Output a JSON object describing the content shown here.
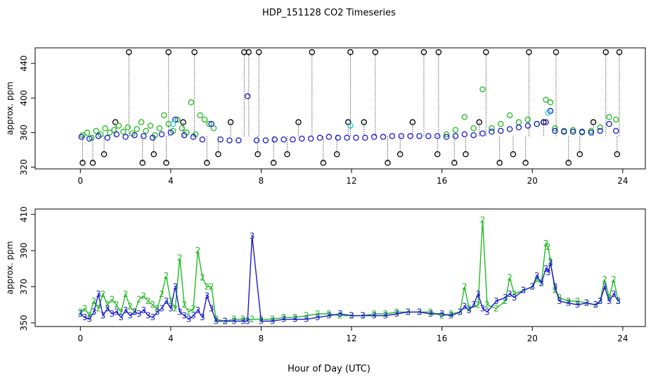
{
  "title": "HDP_151128  CO2 Timeseries",
  "xlabel": "Hour of Day (UTC)",
  "colors": {
    "black": "#000000",
    "green": "#22bb22",
    "blue": "#1a1acc",
    "cyan": "#22cccc"
  },
  "chart_data": [
    {
      "type": "scatter",
      "panel": "top",
      "ylabel": "approx. ppm",
      "xlim": [
        -2,
        25
      ],
      "ylim": [
        318,
        458
      ],
      "xticks": [
        0,
        4,
        8,
        12,
        16,
        20,
        24
      ],
      "yticks": [
        320,
        360,
        400,
        440
      ],
      "grid": false,
      "legend": "none",
      "series": [
        {
          "color": "black",
          "marker": "circle",
          "style": "dotted-stems-to-points",
          "x": [
            0.1,
            0.55,
            1.05,
            1.55,
            2.15,
            2.75,
            3.25,
            3.8,
            3.9,
            4.55,
            5.05,
            5.6,
            6.1,
            6.65,
            7.25,
            7.45,
            7.85,
            7.9,
            8.55,
            9.15,
            9.65,
            10.25,
            10.75,
            11.35,
            11.85,
            11.95,
            12.55,
            13.05,
            13.6,
            14.15,
            14.7,
            15.2,
            15.8,
            15.85,
            16.55,
            17.05,
            17.65,
            17.95,
            18.55,
            19.15,
            19.7,
            19.85,
            20.5,
            21.05,
            21.6,
            22.1,
            22.7,
            23.25,
            23.75,
            23.85
          ],
          "y": [
            325,
            325,
            335,
            372,
            453,
            325,
            335,
            325,
            453,
            372,
            453,
            325,
            335,
            372,
            453,
            453,
            335,
            453,
            325,
            335,
            372,
            453,
            325,
            335,
            372,
            453,
            372,
            453,
            325,
            335,
            372,
            453,
            335,
            453,
            325,
            335,
            372,
            453,
            325,
            335,
            325,
            453,
            372,
            453,
            325,
            335,
            372,
            453,
            335,
            453
          ]
        },
        {
          "color": "green",
          "marker": "circle",
          "x": [
            0.1,
            0.3,
            0.5,
            0.7,
            0.9,
            1.1,
            1.3,
            1.5,
            1.7,
            1.9,
            2.1,
            2.3,
            2.5,
            2.7,
            2.9,
            3.1,
            3.3,
            3.5,
            3.7,
            3.9,
            4.1,
            4.3,
            4.5,
            4.7,
            4.9,
            5.1,
            5.3,
            5.5,
            5.7,
            5.9,
            16.2,
            16.6,
            17.0,
            17.4,
            17.8,
            18.2,
            18.6,
            19.0,
            19.4,
            19.8,
            20.2,
            20.6,
            20.8,
            21.0,
            21.4,
            21.8,
            22.2,
            22.6,
            23.0,
            23.4,
            23.7
          ],
          "y": [
            357,
            360,
            354,
            362,
            358,
            365,
            360,
            363,
            368,
            361,
            366,
            359,
            364,
            372,
            362,
            368,
            357,
            365,
            380,
            370,
            362,
            375,
            365,
            360,
            395,
            358,
            380,
            375,
            370,
            365,
            358,
            363,
            378,
            365,
            410,
            365,
            370,
            380,
            372,
            375,
            370,
            398,
            395,
            365,
            362,
            363,
            360,
            362,
            366,
            378,
            375
          ]
        },
        {
          "color": "blue",
          "marker": "circle",
          "x": [
            0.05,
            0.4,
            0.8,
            1.2,
            1.6,
            2.0,
            2.4,
            2.8,
            3.2,
            3.6,
            4.0,
            4.2,
            4.6,
            5.0,
            5.4,
            5.8,
            6.2,
            6.6,
            7.0,
            7.4,
            7.8,
            8.2,
            8.6,
            9.0,
            9.4,
            9.8,
            10.2,
            10.6,
            11.0,
            11.4,
            11.8,
            12.2,
            12.6,
            13.0,
            13.4,
            13.8,
            14.2,
            14.6,
            15.0,
            15.4,
            15.8,
            16.2,
            16.6,
            17.0,
            17.4,
            17.8,
            18.2,
            18.6,
            19.0,
            19.4,
            19.8,
            20.2,
            20.6,
            20.8,
            21.0,
            21.4,
            21.8,
            22.2,
            22.6,
            23.0,
            23.4,
            23.7
          ],
          "y": [
            355,
            353,
            356,
            354,
            358,
            355,
            357,
            356,
            354,
            358,
            360,
            375,
            357,
            355,
            352,
            370,
            352,
            351,
            351,
            402,
            351,
            351,
            352,
            352,
            352,
            353,
            353,
            354,
            355,
            354,
            354,
            354,
            354,
            355,
            355,
            356,
            356,
            356,
            356,
            356,
            356,
            355,
            356,
            358,
            357,
            359,
            361,
            362,
            364,
            366,
            368,
            370,
            372,
            385,
            362,
            361,
            361,
            361,
            360,
            362,
            370,
            362
          ]
        },
        {
          "color": "cyan",
          "marker": "circle",
          "x": [
            4.1,
            11.95,
            20.7
          ],
          "y": [
            370,
            368,
            383
          ]
        }
      ]
    },
    {
      "type": "line",
      "panel": "bottom",
      "ylabel": "approx. ppm",
      "xlim": [
        -2,
        25
      ],
      "ylim": [
        348,
        413
      ],
      "xticks": [
        0,
        4,
        8,
        12,
        16,
        20,
        24
      ],
      "yticks": [
        350,
        370,
        390,
        410
      ],
      "grid": false,
      "legend": "none",
      "series": [
        {
          "color": "green",
          "marker_text": "2",
          "x": [
            0.0,
            0.2,
            0.4,
            0.6,
            0.8,
            1.0,
            1.2,
            1.4,
            1.6,
            1.8,
            2.0,
            2.2,
            2.4,
            2.6,
            2.8,
            3.0,
            3.2,
            3.4,
            3.6,
            3.8,
            4.0,
            4.2,
            4.4,
            4.6,
            4.8,
            5.0,
            5.2,
            5.4,
            5.6,
            5.8,
            6.0,
            6.4,
            6.8,
            7.2,
            7.6,
            8.0,
            8.5,
            9.0,
            9.5,
            10.0,
            10.5,
            11.0,
            11.5,
            12.0,
            12.5,
            13.0,
            13.5,
            14.0,
            14.5,
            15.0,
            15.5,
            16.0,
            16.4,
            16.8,
            17.0,
            17.2,
            17.6,
            17.8,
            18.0,
            18.4,
            18.8,
            19.0,
            19.2,
            19.6,
            20.0,
            20.2,
            20.4,
            20.6,
            20.7,
            20.8,
            21.0,
            21.2,
            21.6,
            22.0,
            22.4,
            22.8,
            23.0,
            23.2,
            23.4,
            23.6,
            23.8
          ],
          "y": [
            356,
            358,
            354,
            362,
            358,
            366,
            360,
            363,
            360,
            356,
            366,
            359,
            356,
            363,
            365,
            362,
            360,
            358,
            366,
            376,
            362,
            358,
            386,
            360,
            356,
            358,
            390,
            375,
            370,
            370,
            352,
            351,
            352,
            352,
            352,
            352,
            352,
            353,
            353,
            354,
            355,
            355,
            354,
            354,
            354,
            355,
            355,
            356,
            356,
            356,
            356,
            354,
            355,
            356,
            370,
            358,
            360,
            407,
            360,
            358,
            362,
            375,
            366,
            368,
            370,
            374,
            372,
            394,
            392,
            384,
            368,
            364,
            362,
            362,
            361,
            360,
            362,
            374,
            364,
            374,
            362
          ]
        },
        {
          "color": "blue",
          "marker_text": "3",
          "x": [
            0.0,
            0.2,
            0.4,
            0.6,
            0.8,
            1.0,
            1.2,
            1.4,
            1.6,
            1.8,
            2.0,
            2.2,
            2.4,
            2.6,
            2.8,
            3.0,
            3.2,
            3.4,
            3.6,
            3.8,
            4.0,
            4.2,
            4.4,
            4.6,
            4.8,
            5.0,
            5.2,
            5.4,
            5.6,
            5.8,
            6.0,
            6.4,
            6.8,
            7.2,
            7.4,
            7.6,
            8.0,
            8.5,
            9.0,
            9.5,
            10.0,
            10.5,
            11.0,
            11.5,
            12.0,
            12.5,
            13.0,
            13.5,
            14.0,
            14.5,
            15.0,
            15.5,
            16.0,
            16.4,
            16.8,
            17.0,
            17.2,
            17.4,
            17.6,
            17.8,
            18.0,
            18.4,
            18.8,
            19.0,
            19.2,
            19.6,
            20.0,
            20.2,
            20.4,
            20.6,
            20.7,
            20.8,
            21.0,
            21.2,
            21.6,
            22.0,
            22.4,
            22.8,
            23.0,
            23.2,
            23.4,
            23.6,
            23.8
          ],
          "y": [
            355,
            353,
            352,
            356,
            366,
            354,
            358,
            355,
            356,
            353,
            357,
            354,
            356,
            355,
            357,
            354,
            353,
            356,
            358,
            362,
            358,
            370,
            356,
            354,
            352,
            354,
            357,
            353,
            365,
            358,
            351,
            351,
            351,
            351,
            351,
            398,
            351,
            351,
            352,
            352,
            352,
            353,
            354,
            355,
            354,
            354,
            354,
            354,
            355,
            356,
            356,
            355,
            355,
            354,
            356,
            359,
            357,
            360,
            366,
            358,
            356,
            362,
            364,
            366,
            364,
            368,
            370,
            376,
            372,
            380,
            378,
            383,
            370,
            362,
            361,
            360,
            361,
            360,
            362,
            370,
            362,
            366,
            362
          ]
        }
      ]
    }
  ]
}
